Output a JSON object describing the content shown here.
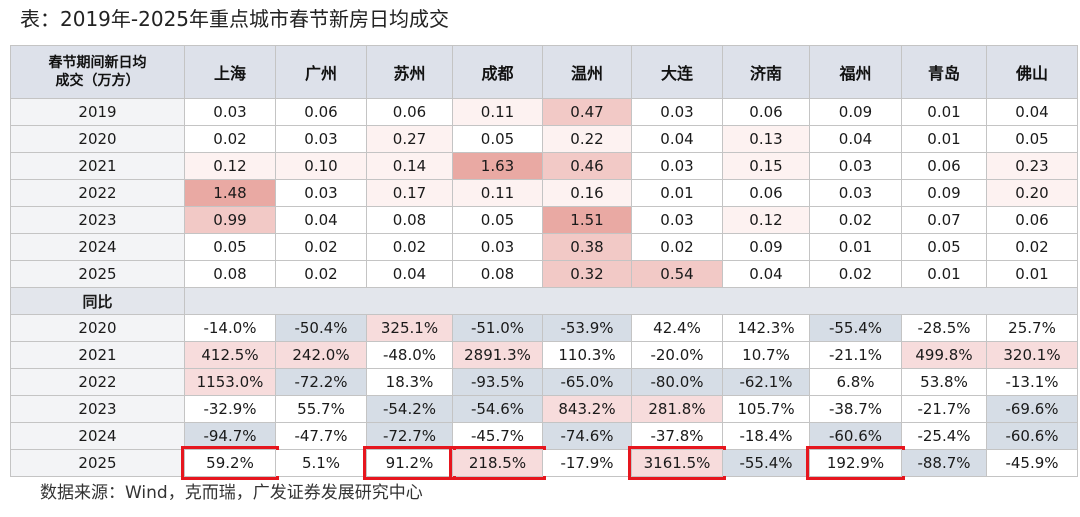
{
  "title": "表：2019年-2025年重点城市春节新房日均成交",
  "source": "数据来源：Wind，克而瑞，广发证券发展研究中心",
  "header": {
    "corner_line1": "春节期间新日均",
    "corner_line2": "成交（万方）",
    "cities": [
      "上海",
      "广州",
      "苏州",
      "成都",
      "温州",
      "大连",
      "济南",
      "福州",
      "青岛",
      "佛山"
    ]
  },
  "volume_rows": [
    {
      "year": "2019",
      "values": [
        "0.03",
        "0.06",
        "0.06",
        "0.11",
        "0.47",
        "0.03",
        "0.06",
        "0.09",
        "0.01",
        "0.04"
      ]
    },
    {
      "year": "2020",
      "values": [
        "0.02",
        "0.03",
        "0.27",
        "0.05",
        "0.22",
        "0.04",
        "0.13",
        "0.04",
        "0.01",
        "0.05"
      ]
    },
    {
      "year": "2021",
      "values": [
        "0.12",
        "0.10",
        "0.14",
        "1.63",
        "0.46",
        "0.03",
        "0.15",
        "0.03",
        "0.06",
        "0.23"
      ]
    },
    {
      "year": "2022",
      "values": [
        "1.48",
        "0.03",
        "0.17",
        "0.11",
        "0.16",
        "0.01",
        "0.06",
        "0.03",
        "0.09",
        "0.20"
      ]
    },
    {
      "year": "2023",
      "values": [
        "0.99",
        "0.04",
        "0.08",
        "0.05",
        "1.51",
        "0.03",
        "0.12",
        "0.02",
        "0.07",
        "0.06"
      ]
    },
    {
      "year": "2024",
      "values": [
        "0.05",
        "0.02",
        "0.02",
        "0.03",
        "0.38",
        "0.02",
        "0.09",
        "0.01",
        "0.05",
        "0.02"
      ]
    },
    {
      "year": "2025",
      "values": [
        "0.08",
        "0.02",
        "0.04",
        "0.08",
        "0.32",
        "0.54",
        "0.04",
        "0.02",
        "0.01",
        "0.01"
      ]
    }
  ],
  "yoy_label": "同比",
  "yoy_rows": [
    {
      "year": "2020",
      "values": [
        "-14.0%",
        "-50.4%",
        "325.1%",
        "-51.0%",
        "-53.9%",
        "42.4%",
        "142.3%",
        "-55.4%",
        "-28.5%",
        "25.7%"
      ]
    },
    {
      "year": "2021",
      "values": [
        "412.5%",
        "242.0%",
        "-48.0%",
        "2891.3%",
        "110.3%",
        "-20.0%",
        "10.7%",
        "-21.1%",
        "499.8%",
        "320.1%"
      ]
    },
    {
      "year": "2022",
      "values": [
        "1153.0%",
        "-72.2%",
        "18.3%",
        "-93.5%",
        "-65.0%",
        "-80.0%",
        "-62.1%",
        "6.8%",
        "53.8%",
        "-13.1%"
      ]
    },
    {
      "year": "2023",
      "values": [
        "-32.9%",
        "55.7%",
        "-54.2%",
        "-54.6%",
        "843.2%",
        "281.8%",
        "105.7%",
        "-38.7%",
        "-21.7%",
        "-69.6%"
      ]
    },
    {
      "year": "2024",
      "values": [
        "-94.7%",
        "-47.7%",
        "-72.7%",
        "-45.7%",
        "-74.6%",
        "-37.8%",
        "-18.4%",
        "-60.6%",
        "-25.4%",
        "-60.6%"
      ]
    },
    {
      "year": "2025",
      "values": [
        "59.2%",
        "5.1%",
        "91.2%",
        "218.5%",
        "-17.9%",
        "3161.5%",
        "-55.4%",
        "192.9%",
        "-88.7%",
        "-45.9%"
      ]
    }
  ],
  "colors": {
    "header_bg": "#dde1ea",
    "highlight_border": "#e6161e",
    "volume_scale": [
      "#fdf2f1",
      "#f2c9c6",
      "#e9a9a3"
    ],
    "yoy_negative": "#d6dde6",
    "yoy_positive": "#f7dcdc"
  },
  "highlighted_2025_cities": [
    "上海",
    "苏州",
    "成都",
    "大连",
    "福州"
  ]
}
